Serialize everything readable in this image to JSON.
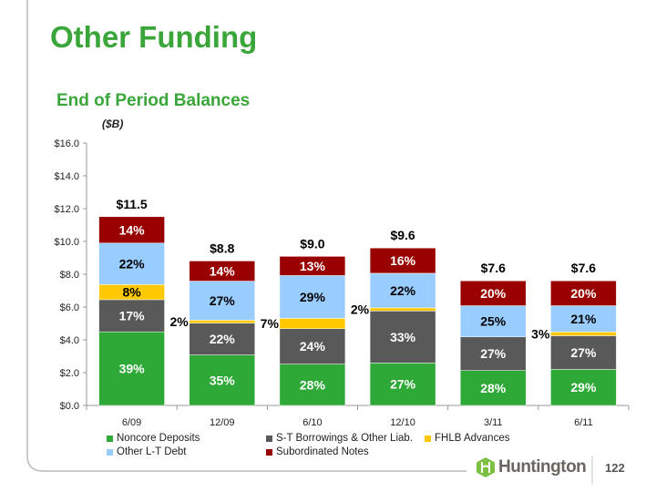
{
  "header": {
    "title": "Other Funding",
    "subtitle": "End of Period Balances",
    "unit": "($B)"
  },
  "footer": {
    "brand": "Huntington",
    "page_number": "122"
  },
  "chart_data": {
    "type": "bar",
    "stacked": true,
    "categories": [
      "6/09",
      "12/09",
      "6/10",
      "12/10",
      "3/11",
      "6/11"
    ],
    "totals": [
      11.5,
      8.8,
      9.0,
      9.6,
      7.6,
      7.6
    ],
    "total_labels": [
      "$11.5",
      "$8.8",
      "$9.0",
      "$9.6",
      "$7.6",
      "$7.6"
    ],
    "ylim": [
      0,
      16
    ],
    "yticks": [
      "$0.0",
      "$2.0",
      "$4.0",
      "$6.0",
      "$8.0",
      "$10.0",
      "$12.0",
      "$14.0",
      "$16.0"
    ],
    "series": [
      {
        "name": "Noncore Deposits",
        "color": "#2ea836",
        "label_color": "#ffffff",
        "pct": [
          39,
          35,
          28,
          27,
          28,
          29
        ],
        "values": [
          4.49,
          3.08,
          2.52,
          2.59,
          2.13,
          2.2
        ]
      },
      {
        "name": "S-T Borrowings & Other Liab.",
        "color": "#595959",
        "label_color": "#ffffff",
        "pct": [
          17,
          22,
          24,
          33,
          27,
          27
        ],
        "values": [
          1.96,
          1.94,
          2.16,
          3.17,
          2.05,
          2.05
        ]
      },
      {
        "name": "FHLB Advances",
        "color": "#ffc800",
        "label_color": "#000000",
        "pct": [
          8,
          2,
          7,
          2,
          0,
          3
        ],
        "values": [
          0.92,
          0.18,
          0.63,
          0.19,
          0,
          0.23
        ]
      },
      {
        "name": "Other L-T Debt",
        "color": "#99ccff",
        "label_color": "#000000",
        "pct": [
          22,
          27,
          29,
          22,
          25,
          21
        ],
        "values": [
          2.53,
          2.38,
          2.61,
          2.11,
          1.9,
          1.6
        ]
      },
      {
        "name": "Subordinated Notes",
        "color": "#990000",
        "label_color": "#ffffff",
        "pct": [
          14,
          14,
          13,
          16,
          20,
          20
        ],
        "values": [
          1.61,
          1.23,
          1.17,
          1.54,
          1.52,
          1.52
        ]
      }
    ],
    "pct_labels": [
      [
        "39%",
        "35%",
        "28%",
        "27%",
        "28%",
        "29%"
      ],
      [
        "17%",
        "22%",
        "24%",
        "33%",
        "27%",
        "27%"
      ],
      [
        "8%",
        "2%",
        "7%",
        "2%",
        "",
        "3%"
      ],
      [
        "22%",
        "27%",
        "29%",
        "22%",
        "25%",
        "21%"
      ],
      [
        "14%",
        "14%",
        "13%",
        "16%",
        "20%",
        "20%"
      ]
    ],
    "legend": {
      "placement": "bottom"
    }
  }
}
